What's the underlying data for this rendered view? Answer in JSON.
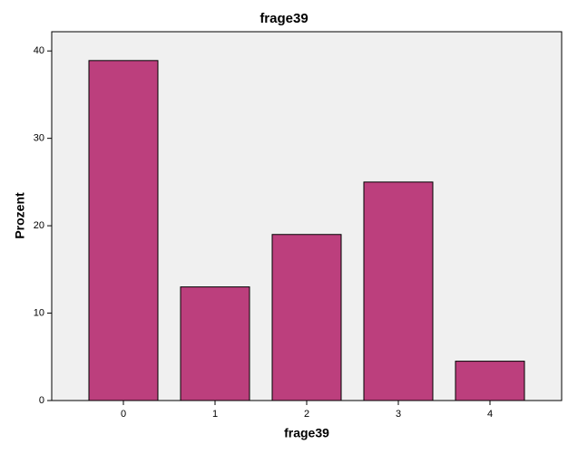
{
  "chart_data": {
    "type": "bar",
    "title": "frage39",
    "x_label": "frage39",
    "y_label": "Prozent",
    "categories": [
      "0",
      "1",
      "2",
      "3",
      "4"
    ],
    "values": [
      38.9,
      13.0,
      19.0,
      25.0,
      4.5
    ],
    "color": "#bc3f7d",
    "ylim": [
      0,
      42.2
    ],
    "yticks": [
      0,
      10,
      20,
      30,
      40
    ],
    "grid": false
  }
}
